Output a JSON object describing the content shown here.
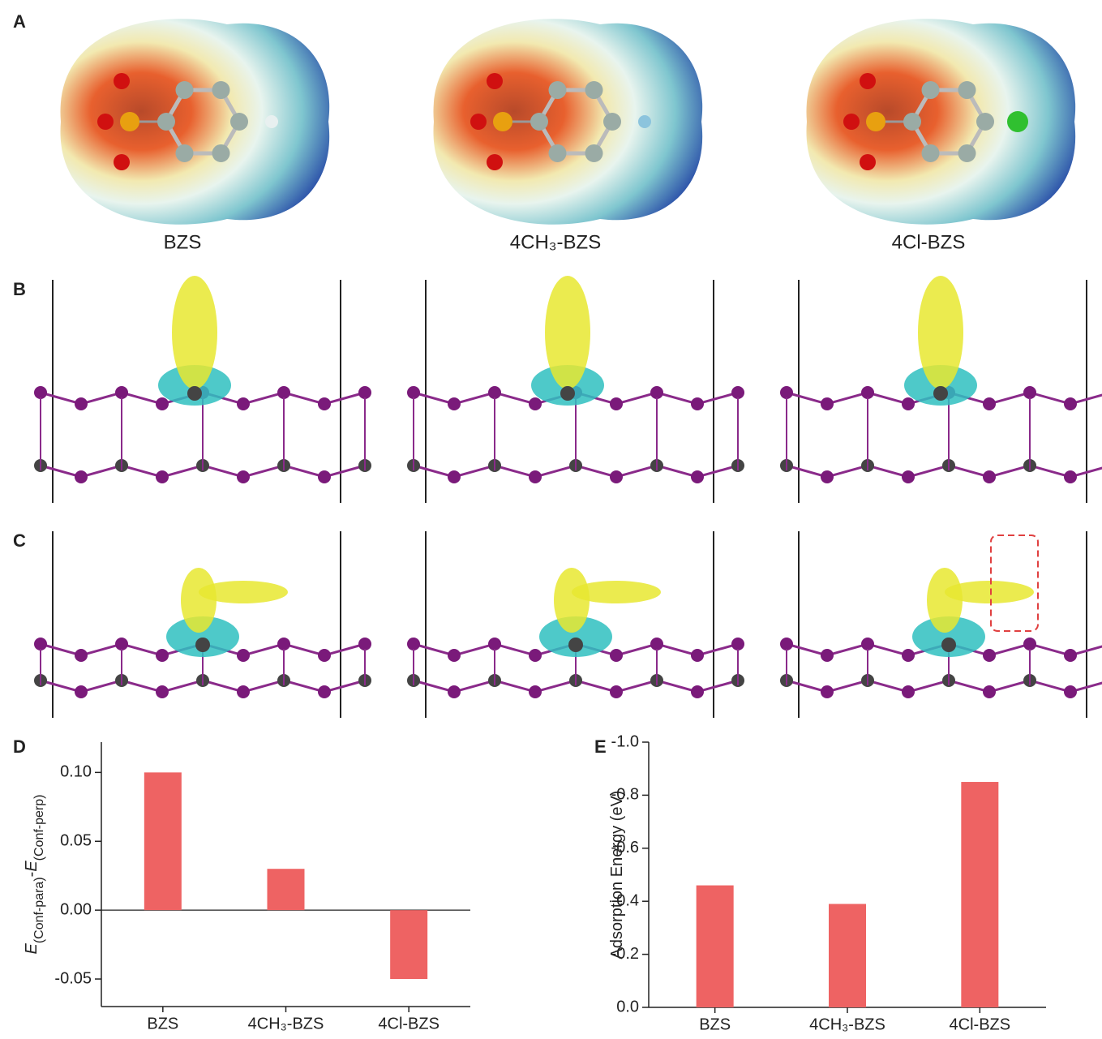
{
  "panels": {
    "labels": [
      "A",
      "B",
      "C",
      "D",
      "E"
    ],
    "molecules": [
      "BZS",
      "4CH₃-BZS",
      "4Cl-BZS"
    ]
  },
  "chart_data": [
    {
      "type": "bar",
      "ylabel": [
        {
          "text": "E",
          "sub": false
        },
        {
          "text": "(Conf-para)",
          "sub": true
        },
        {
          "text": "-",
          "sub": false
        },
        {
          "text": "E",
          "sub": false
        },
        {
          "text": "(Conf-perp)",
          "sub": true
        }
      ],
      "categories": [
        "BZS",
        "4CH₃-BZS",
        "4Cl-BZS"
      ],
      "values": [
        0.1,
        0.03,
        -0.05
      ],
      "color": "#ee6363",
      "ylim": [
        -0.07,
        0.122
      ],
      "yticks": [
        {
          "value": 0.1,
          "label": "0.10"
        },
        {
          "value": 0.05,
          "label": "0.05"
        },
        {
          "value": 0,
          "label": "0.00"
        },
        {
          "value": -0.05,
          "label": "-0.05"
        }
      ],
      "zero_line": true
    },
    {
      "type": "bar",
      "ylabel": [
        {
          "text": "Adsorption Energy (eV)",
          "sub": false
        }
      ],
      "categories": [
        "BZS",
        "4CH₃-BZS",
        "4Cl-BZS"
      ],
      "values": [
        -0.46,
        -0.39,
        -0.85
      ],
      "color": "#ee6363",
      "ylim": [
        0,
        -1.0
      ],
      "yticks": [
        {
          "value": 0,
          "label": "0.0"
        },
        -0.2,
        -0.4,
        -0.6,
        -0.8,
        {
          "value": -1,
          "label": "-1.0"
        }
      ],
      "zero_line": false
    }
  ]
}
